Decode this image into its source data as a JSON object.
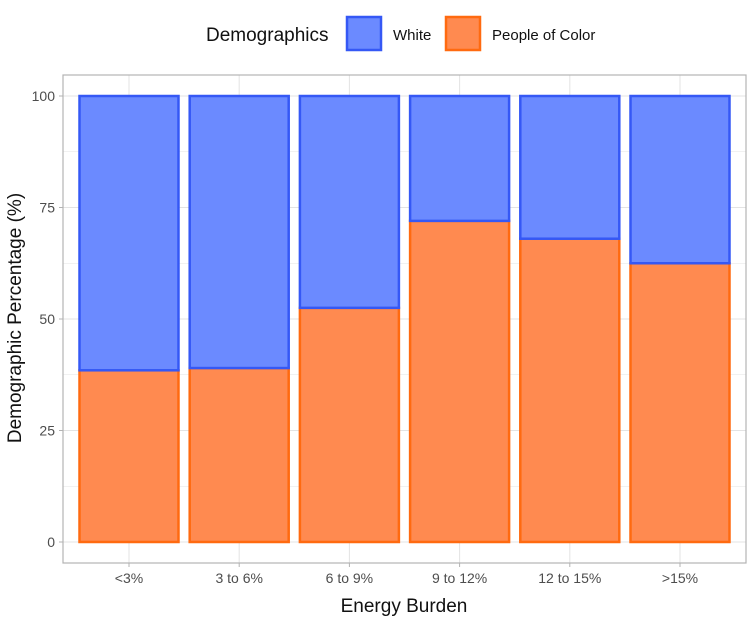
{
  "chart_data": {
    "type": "bar",
    "stacked": true,
    "categories": [
      "<3%",
      "3 to 6%",
      "6 to 9%",
      "9 to 12%",
      "12 to 15%",
      ">15%"
    ],
    "series": [
      {
        "name": "People of Color",
        "values": [
          38.5,
          39,
          52.5,
          72,
          68,
          62.5
        ],
        "fill": "#FF8A50",
        "stroke": "#FF6A10"
      },
      {
        "name": "White",
        "values": [
          61.5,
          61,
          47.5,
          28,
          32,
          37.5
        ],
        "fill": "#6B8AFF",
        "stroke": "#3558F5"
      }
    ],
    "xlabel": "Energy Burden",
    "ylabel": "Demographic Percentage (%)",
    "ylim": [
      0,
      100
    ],
    "yticks": [
      0,
      25,
      50,
      75,
      100
    ],
    "grid": true,
    "legend": {
      "title": "Demographics",
      "position": "top",
      "items": [
        "White",
        "People of Color"
      ]
    }
  }
}
